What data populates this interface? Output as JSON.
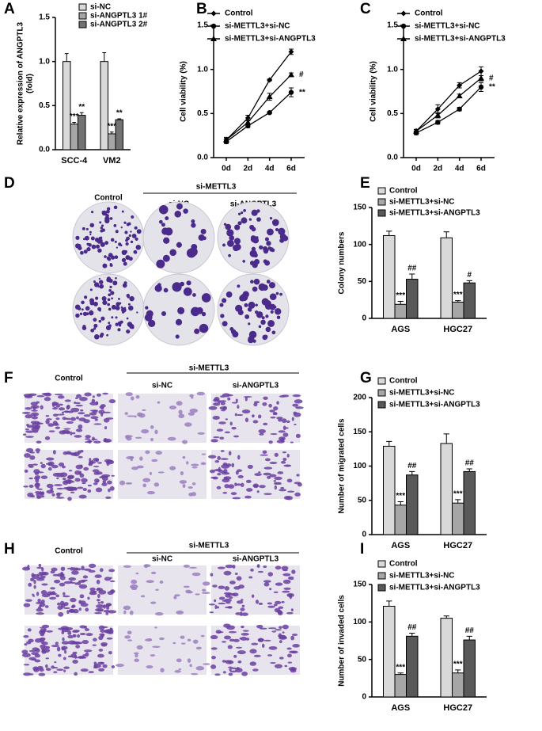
{
  "panel_labels": [
    "A",
    "B",
    "C",
    "D",
    "E",
    "F",
    "G",
    "H",
    "I"
  ],
  "image_panels": [
    {
      "control": "Control",
      "group": "si-METTL3",
      "groups": [
        "si-NC",
        "si-ANGPTL3"
      ]
    },
    {
      "control": "Control",
      "group": "si-METTL3",
      "groups": [
        "si-NC",
        "si-ANGPTL3"
      ]
    },
    {
      "control": "Control",
      "group": "si-METTL3",
      "groups": [
        "si-NC",
        "si-ANGPTL3"
      ]
    }
  ],
  "chart_data": [
    {
      "type": "bar",
      "ylabel": [
        "Relative expression of ANGPTL3",
        "(fold)"
      ],
      "categories": [
        "SCC-4",
        "VM2"
      ],
      "series": [
        {
          "name": "si-NC",
          "color": "#d9d9d9",
          "values": [
            1.0,
            1.0
          ],
          "errors": [
            0.09,
            0.1
          ]
        },
        {
          "name": "si-ANGPTL3 1#",
          "color": "#a6a6a6",
          "values": [
            0.29,
            0.18
          ],
          "errors": [
            0.02,
            0.02
          ],
          "sig": [
            "***",
            "***"
          ]
        },
        {
          "name": "si-ANGPTL3 2#",
          "color": "#737373",
          "values": [
            0.39,
            0.34
          ],
          "errors": [
            0.03,
            0.01
          ],
          "sig": [
            "**",
            "**"
          ]
        }
      ],
      "ylim": [
        0,
        1.5
      ],
      "yticks": [
        {
          "value": 0,
          "label": "0.0"
        },
        0.5,
        {
          "value": 1,
          "label": "1.0"
        },
        1.5
      ]
    },
    {
      "type": "line",
      "ylabel": [
        "Cell viability (%)"
      ],
      "categories": [
        "0d",
        "2d",
        "4d",
        "6d"
      ],
      "series": [
        {
          "name": "Control",
          "color": "#000000",
          "marker": "diamond",
          "values": [
            0.2,
            0.45,
            0.88,
            1.2
          ],
          "errors": [
            0.03,
            0.03,
            0.01,
            0.03
          ]
        },
        {
          "name": "si-METTL3+si-NC",
          "color": "#000000",
          "marker": "circle",
          "values": [
            0.18,
            0.36,
            0.51,
            0.74
          ],
          "errors": [
            0.02,
            0.02,
            0.01,
            0.05
          ],
          "sig": "**"
        },
        {
          "name": "si-METTL3+si-ANGPTL3",
          "color": "#000000",
          "marker": "triangle",
          "values": [
            0.2,
            0.4,
            0.69,
            0.94
          ],
          "errors": [
            0.02,
            0.02,
            0.04,
            0.02
          ],
          "sig": "#"
        }
      ],
      "ylim": [
        0,
        1.5
      ],
      "yticks": [
        {
          "value": 0,
          "label": "0.0"
        },
        0.5,
        {
          "value": 1,
          "label": "1.0"
        },
        1.5
      ]
    },
    {
      "type": "line",
      "ylabel": [
        "Cell viability (%)"
      ],
      "categories": [
        "0d",
        "2d",
        "4d",
        "6d"
      ],
      "series": [
        {
          "name": "Control",
          "color": "#000000",
          "marker": "diamond",
          "values": [
            0.3,
            0.55,
            0.82,
            0.98
          ],
          "errors": [
            0.02,
            0.05,
            0.03,
            0.05
          ]
        },
        {
          "name": "si-METTL3+si-NC",
          "color": "#000000",
          "marker": "circle",
          "values": [
            0.28,
            0.4,
            0.55,
            0.8
          ],
          "errors": [
            0.02,
            0.02,
            0.02,
            0.05
          ],
          "sig": "**"
        },
        {
          "name": "si-METTL3+si-ANGPTL3",
          "color": "#000000",
          "marker": "triangle",
          "values": [
            0.3,
            0.48,
            0.7,
            0.9
          ],
          "errors": [
            0.02,
            0.03,
            0.02,
            0.03
          ],
          "sig": "#"
        }
      ],
      "ylim": [
        0,
        1.5
      ],
      "yticks": [
        {
          "value": 0,
          "label": "0.0"
        },
        0.5,
        {
          "value": 1,
          "label": "1.0"
        },
        1.5
      ]
    },
    {
      "type": "bar",
      "ylabel": [
        "Colony numbers"
      ],
      "categories": [
        "AGS",
        "HGC27"
      ],
      "series": [
        {
          "name": "Control",
          "color": "#d9d9d9",
          "values": [
            112,
            109
          ],
          "errors": [
            6,
            8
          ]
        },
        {
          "name": "si-METTL3+si-NC",
          "color": "#a6a6a6",
          "values": [
            19,
            22
          ],
          "errors": [
            4,
            2
          ],
          "sig": [
            "***",
            "***"
          ]
        },
        {
          "name": "si-METTL3+si-ANGPTL3",
          "color": "#595959",
          "values": [
            53,
            48
          ],
          "errors": [
            7,
            3
          ],
          "sig": [
            "##",
            "#"
          ]
        }
      ],
      "ylim": [
        0,
        150
      ],
      "yticks": [
        0,
        50,
        100,
        150
      ]
    },
    {
      "type": "bar",
      "ylabel": [
        "Number of migrated cells"
      ],
      "categories": [
        "AGS",
        "HGC27"
      ],
      "series": [
        {
          "name": "Control",
          "color": "#d9d9d9",
          "values": [
            129,
            133
          ],
          "errors": [
            7,
            14
          ]
        },
        {
          "name": "si-METTL3+si-NC",
          "color": "#a6a6a6",
          "values": [
            43,
            46
          ],
          "errors": [
            5,
            5
          ],
          "sig": [
            "***",
            "***"
          ]
        },
        {
          "name": "si-METTL3+si-ANGPTL3",
          "color": "#595959",
          "values": [
            87,
            92
          ],
          "errors": [
            5,
            4
          ],
          "sig": [
            "##",
            "##"
          ]
        }
      ],
      "ylim": [
        0,
        200
      ],
      "yticks": [
        0,
        50,
        100,
        150,
        200
      ]
    },
    {
      "type": "bar",
      "ylabel": [
        "Number of invaded cells"
      ],
      "categories": [
        "AGS",
        "HGC27"
      ],
      "series": [
        {
          "name": "Control",
          "color": "#d9d9d9",
          "values": [
            121,
            105
          ],
          "errors": [
            7,
            3
          ]
        },
        {
          "name": "si-METTL3+si-NC",
          "color": "#a6a6a6",
          "values": [
            30,
            32
          ],
          "errors": [
            2,
            4
          ],
          "sig": [
            "***",
            "***"
          ]
        },
        {
          "name": "si-METTL3+si-ANGPTL3",
          "color": "#595959",
          "values": [
            81,
            76
          ],
          "errors": [
            4,
            5
          ],
          "sig": [
            "##",
            "##"
          ]
        }
      ],
      "ylim": [
        0,
        150
      ],
      "yticks": [
        0,
        50,
        100,
        150
      ]
    }
  ]
}
